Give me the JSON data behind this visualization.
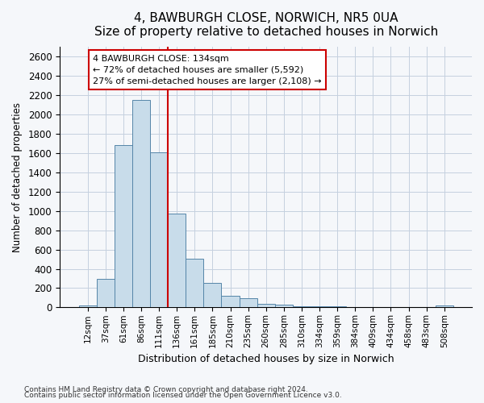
{
  "title_line1": "4, BAWBURGH CLOSE, NORWICH, NR5 0UA",
  "title_line2": "Size of property relative to detached houses in Norwich",
  "xlabel": "Distribution of detached houses by size in Norwich",
  "ylabel": "Number of detached properties",
  "categories": [
    "12sqm",
    "37sqm",
    "61sqm",
    "86sqm",
    "111sqm",
    "136sqm",
    "161sqm",
    "185sqm",
    "210sqm",
    "235sqm",
    "260sqm",
    "285sqm",
    "310sqm",
    "334sqm",
    "359sqm",
    "384sqm",
    "409sqm",
    "434sqm",
    "458sqm",
    "483sqm",
    "508sqm"
  ],
  "values": [
    20,
    300,
    1680,
    2150,
    1610,
    970,
    505,
    255,
    120,
    98,
    40,
    30,
    15,
    12,
    8,
    6,
    4,
    3,
    3,
    2,
    20
  ],
  "bar_color": "#c8dcea",
  "bar_edge_color": "#5585a8",
  "vline_color": "#cc0000",
  "vline_x_index": 5,
  "annotation_line1": "4 BAWBURGH CLOSE: 134sqm",
  "annotation_line2": "← 72% of detached houses are smaller (5,592)",
  "annotation_line3": "27% of semi-detached houses are larger (2,108) →",
  "ylim_max": 2700,
  "yticks": [
    0,
    200,
    400,
    600,
    800,
    1000,
    1200,
    1400,
    1600,
    1800,
    2000,
    2200,
    2400,
    2600
  ],
  "grid_color": "#c5d0df",
  "footnote1": "Contains HM Land Registry data © Crown copyright and database right 2024.",
  "footnote2": "Contains public sector information licensed under the Open Government Licence v3.0.",
  "bg_color": "#f5f7fa"
}
